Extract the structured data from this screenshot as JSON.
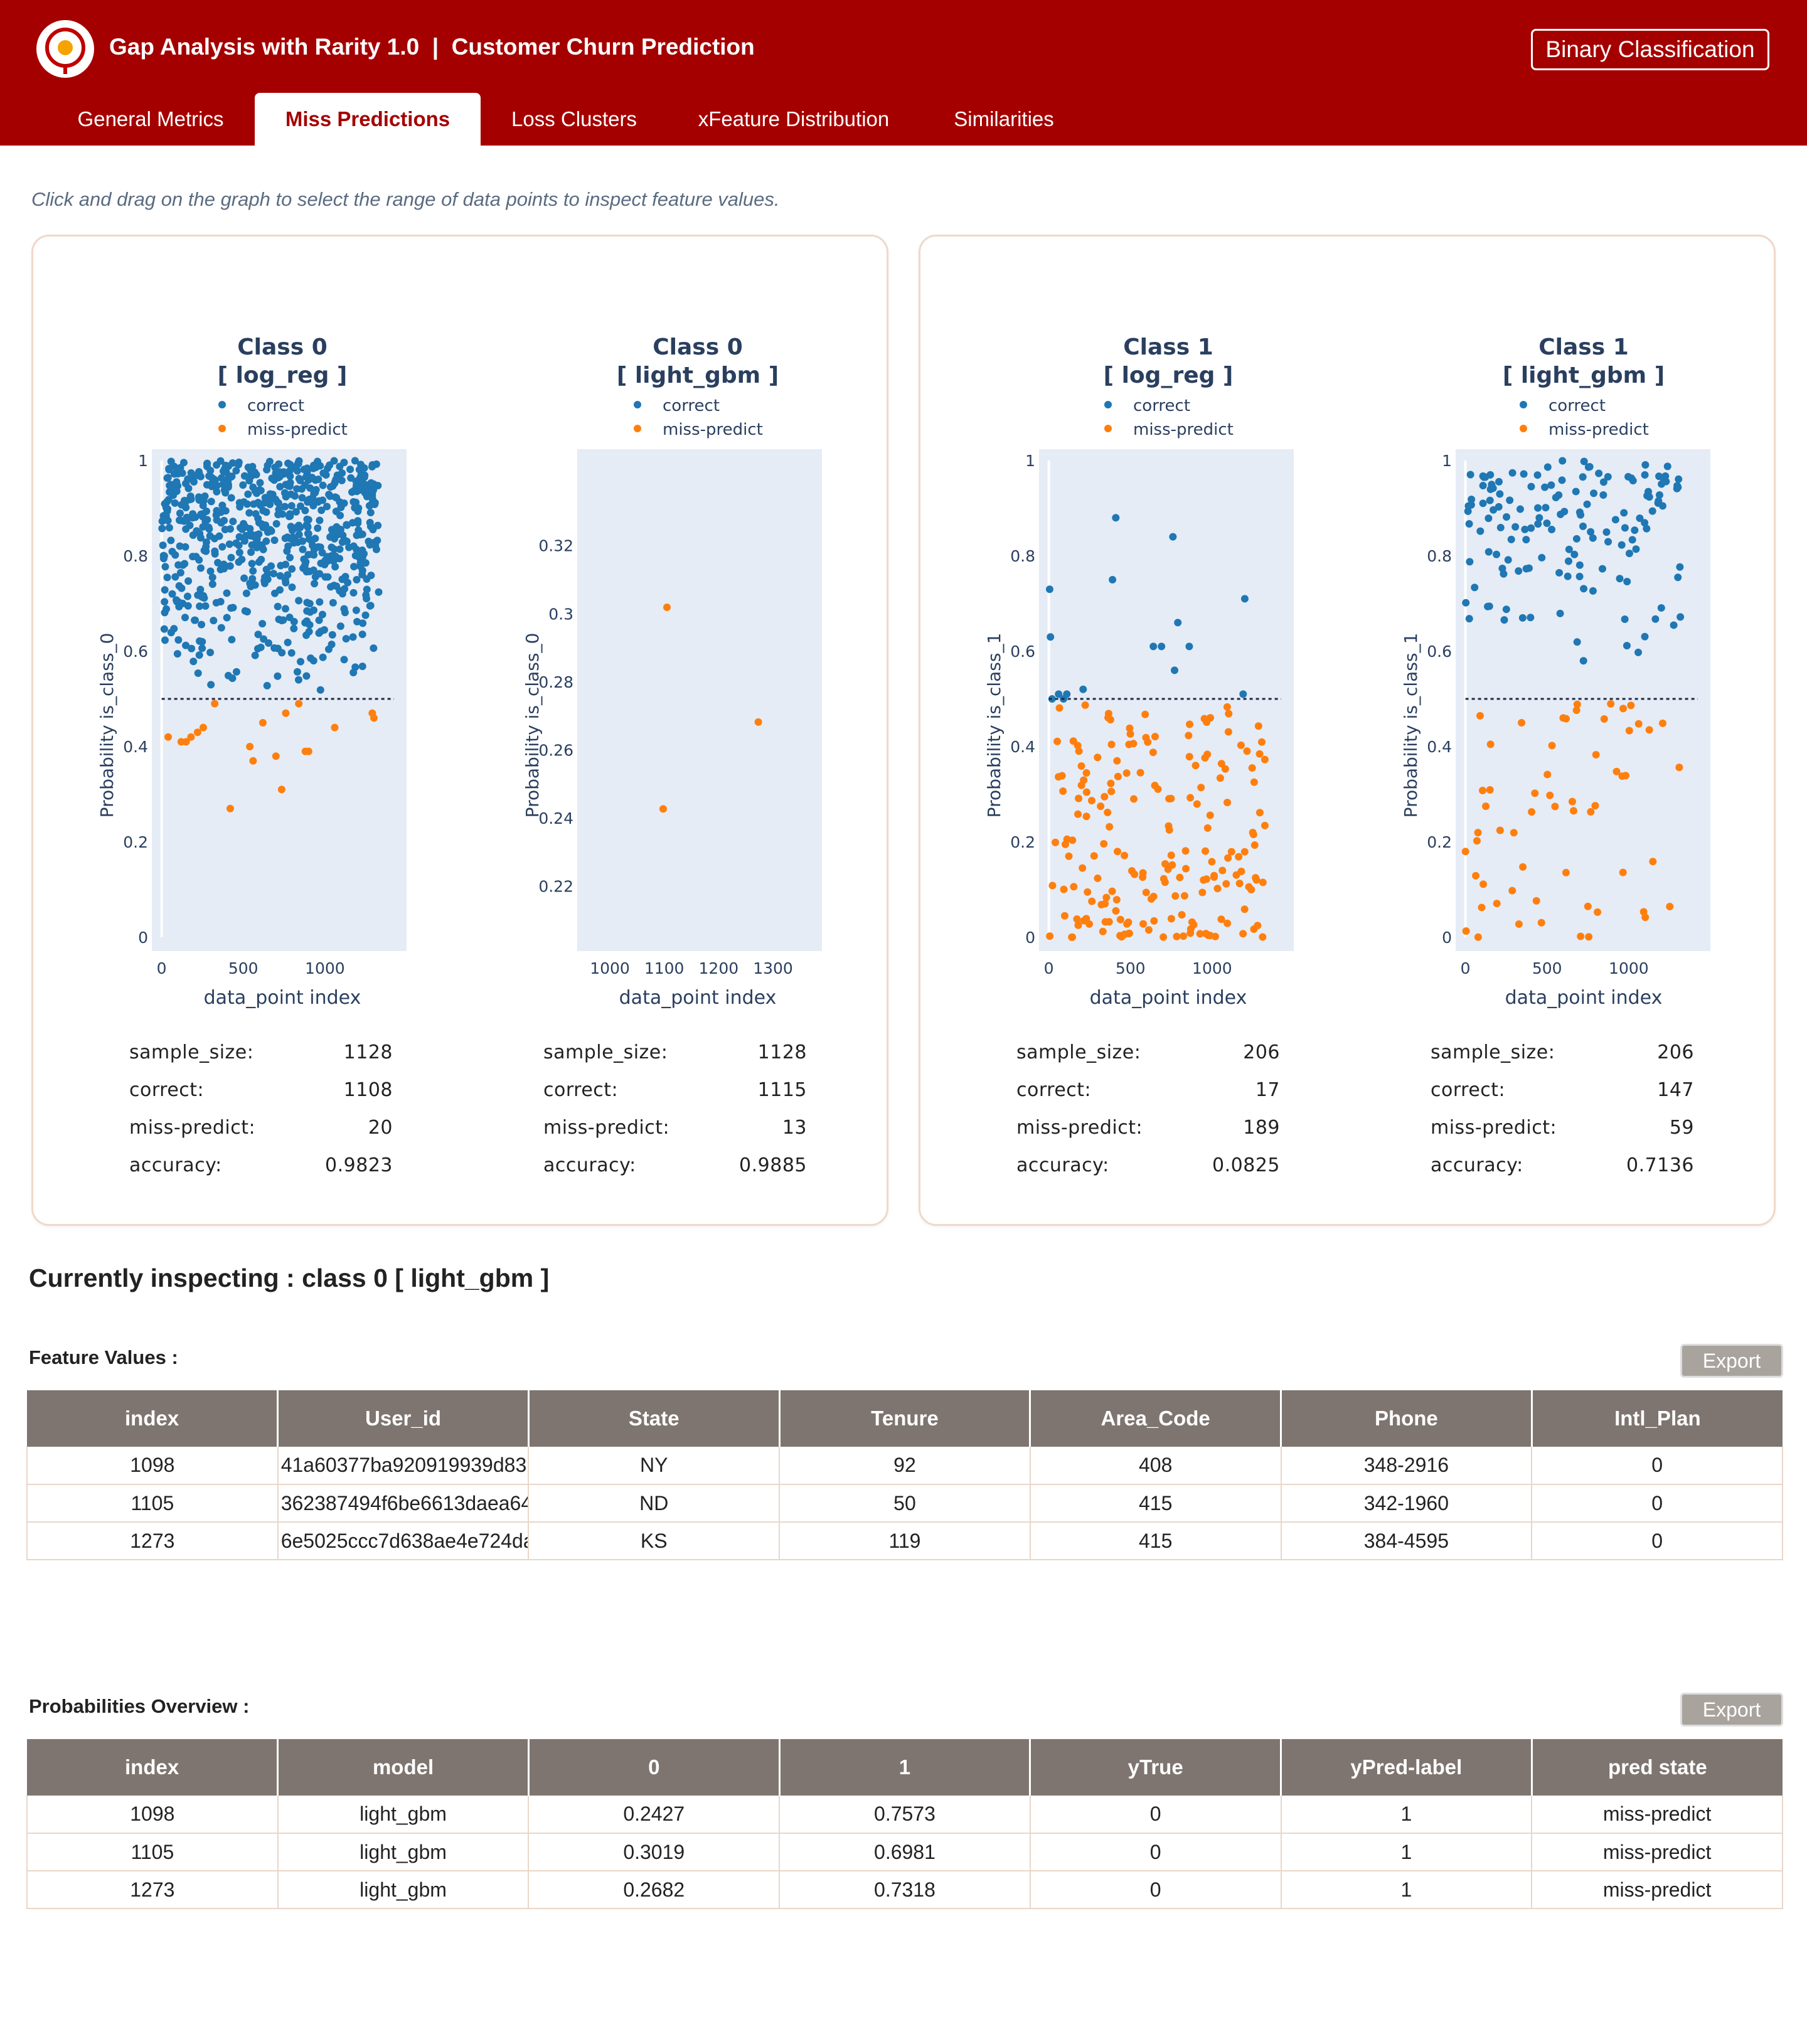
{
  "header": {
    "title": "Gap Analysis with Rarity 1.0  |  Customer Churn Prediction",
    "badge": "Binary Classification",
    "logo_icon": "rarity-logo-icon"
  },
  "tabs": [
    {
      "label": "General Metrics",
      "active": false
    },
    {
      "label": "Miss Predictions",
      "active": true
    },
    {
      "label": "Loss Clusters",
      "active": false
    },
    {
      "label": "xFeature Distribution",
      "active": false
    },
    {
      "label": "Similarities",
      "active": false
    }
  ],
  "hint": "Click and drag on the graph to select the range of data points to inspect feature values.",
  "colors": {
    "header_bg": "#a50000",
    "correct": "#1f77b4",
    "miss_predict": "#ff7f0e",
    "plot_bg": "#e5ecf6",
    "table_header_bg": "#7e7570"
  },
  "plots": [
    {
      "title_line1": "Class 0",
      "title_line2": "[ log_reg ]",
      "legend": [
        "correct",
        "miss-predict"
      ],
      "ylabel": "Probability is_class_0",
      "xlabel": "data_point index",
      "xticks": [
        "0",
        "500",
        "1000"
      ],
      "yticks": [
        "0",
        "0.2",
        "0.4",
        "0.6",
        "0.8",
        "1"
      ],
      "stats": {
        "sample_size": "1128",
        "correct": "1108",
        "miss_predict": "20",
        "accuracy": "0.9823"
      }
    },
    {
      "title_line1": "Class 0",
      "title_line2": "[ light_gbm ]",
      "legend": [
        "correct",
        "miss-predict"
      ],
      "ylabel": "Probability is_class_0",
      "xlabel": "data_point index",
      "xticks": [
        "1000",
        "1100",
        "1200",
        "1300"
      ],
      "yticks": [
        "0.22",
        "0.24",
        "0.26",
        "0.28",
        "0.3",
        "0.32"
      ],
      "stats": {
        "sample_size": "1128",
        "correct": "1115",
        "miss_predict": "13",
        "accuracy": "0.9885"
      }
    },
    {
      "title_line1": "Class 1",
      "title_line2": "[ log_reg ]",
      "legend": [
        "correct",
        "miss-predict"
      ],
      "ylabel": "Probability is_class_1",
      "xlabel": "data_point index",
      "xticks": [
        "0",
        "500",
        "1000"
      ],
      "yticks": [
        "0",
        "0.2",
        "0.4",
        "0.6",
        "0.8",
        "1"
      ],
      "stats": {
        "sample_size": "206",
        "correct": "17",
        "miss_predict": "189",
        "accuracy": "0.0825"
      }
    },
    {
      "title_line1": "Class 1",
      "title_line2": "[ light_gbm ]",
      "legend": [
        "correct",
        "miss-predict"
      ],
      "ylabel": "Probability is_class_1",
      "xlabel": "data_point index",
      "xticks": [
        "0",
        "500",
        "1000"
      ],
      "yticks": [
        "0",
        "0.2",
        "0.4",
        "0.6",
        "0.8",
        "1"
      ],
      "stats": {
        "sample_size": "206",
        "correct": "147",
        "miss_predict": "59",
        "accuracy": "0.7136"
      }
    }
  ],
  "stat_labels": {
    "sample_size": "sample_size:",
    "correct": "correct:",
    "miss_predict": "miss-predict:",
    "accuracy": "accuracy:"
  },
  "chart_data": [
    {
      "type": "scatter",
      "title": "Class 0 [ log_reg ]",
      "xlabel": "data_point index",
      "ylabel": "Probability is_class_0",
      "xlim": [
        -60,
        1500
      ],
      "ylim": [
        0,
        1
      ],
      "threshold": 0.5,
      "series": [
        {
          "name": "correct",
          "color": "#1f77b4",
          "count": 1108,
          "y_range": [
            0.5,
            1.0
          ]
        },
        {
          "name": "miss-predict",
          "color": "#ff7f0e",
          "points": [
            [
              40,
              0.42
            ],
            [
              120,
              0.41
            ],
            [
              150,
              0.41
            ],
            [
              180,
              0.42
            ],
            [
              220,
              0.43
            ],
            [
              255,
              0.44
            ],
            [
              325,
              0.49
            ],
            [
              420,
              0.27
            ],
            [
              540,
              0.4
            ],
            [
              560,
              0.37
            ],
            [
              620,
              0.45
            ],
            [
              700,
              0.38
            ],
            [
              735,
              0.31
            ],
            [
              760,
              0.47
            ],
            [
              840,
              0.49
            ],
            [
              880,
              0.39
            ],
            [
              900,
              0.39
            ],
            [
              1060,
              0.44
            ],
            [
              1300,
              0.46
            ],
            [
              1290,
              0.47
            ]
          ]
        }
      ]
    },
    {
      "type": "scatter",
      "title": "Class 0 [ light_gbm ]",
      "xlabel": "data_point index",
      "ylabel": "Probability is_class_0",
      "xlim": [
        940,
        1390
      ],
      "ylim": [
        0.205,
        0.345
      ],
      "series": [
        {
          "name": "miss-predict",
          "color": "#ff7f0e",
          "points": [
            [
              1098,
              0.2427
            ],
            [
              1105,
              0.3019
            ],
            [
              1273,
              0.2682
            ]
          ]
        }
      ]
    },
    {
      "type": "scatter",
      "title": "Class 1 [ log_reg ]",
      "xlabel": "data_point index",
      "ylabel": "Probability is_class_1",
      "xlim": [
        -60,
        1500
      ],
      "ylim": [
        0,
        1
      ],
      "threshold": 0.5,
      "series": [
        {
          "name": "correct",
          "color": "#1f77b4",
          "points": [
            [
              5,
              0.73
            ],
            [
              10,
              0.63
            ],
            [
              20,
              0.5
            ],
            [
              60,
              0.51
            ],
            [
              90,
              0.5
            ],
            [
              110,
              0.51
            ],
            [
              210,
              0.52
            ],
            [
              390,
              0.75
            ],
            [
              410,
              0.88
            ],
            [
              640,
              0.61
            ],
            [
              690,
              0.61
            ],
            [
              760,
              0.84
            ],
            [
              770,
              0.56
            ],
            [
              790,
              0.66
            ],
            [
              860,
              0.61
            ],
            [
              1200,
              0.71
            ],
            [
              1190,
              0.51
            ]
          ]
        },
        {
          "name": "miss-predict",
          "color": "#ff7f0e",
          "count": 189,
          "y_range": [
            0.0,
            0.49
          ]
        }
      ]
    },
    {
      "type": "scatter",
      "title": "Class 1 [ light_gbm ]",
      "xlabel": "data_point index",
      "ylabel": "Probability is_class_1",
      "xlim": [
        -60,
        1500
      ],
      "ylim": [
        0,
        1
      ],
      "threshold": 0.5,
      "series": [
        {
          "name": "correct",
          "color": "#1f77b4",
          "count": 147,
          "y_range": [
            0.5,
            1.0
          ]
        },
        {
          "name": "miss-predict",
          "color": "#ff7f0e",
          "count": 59,
          "y_range": [
            0.0,
            0.49
          ]
        }
      ]
    }
  ],
  "inspect_title": "Currently inspecting : class 0 [ light_gbm ]",
  "feature_table": {
    "label": "Feature Values :",
    "export_label": "Export",
    "columns": [
      "index",
      "User_id",
      "State",
      "Tenure",
      "Area_Code",
      "Phone",
      "Intl_Plan"
    ],
    "rows": [
      [
        "1098",
        "41a60377ba920919939d83",
        "NY",
        "92",
        "408",
        "348-2916",
        "0"
      ],
      [
        "1105",
        "362387494f6be6613daea64",
        "ND",
        "50",
        "415",
        "342-1960",
        "0"
      ],
      [
        "1273",
        "6e5025ccc7d638ae4e724da",
        "KS",
        "119",
        "415",
        "384-4595",
        "0"
      ]
    ]
  },
  "prob_table": {
    "label": "Probabilities Overview :",
    "export_label": "Export",
    "columns": [
      "index",
      "model",
      "0",
      "1",
      "yTrue",
      "yPred-label",
      "pred state"
    ],
    "rows": [
      [
        "1098",
        "light_gbm",
        "0.2427",
        "0.7573",
        "0",
        "1",
        "miss-predict"
      ],
      [
        "1105",
        "light_gbm",
        "0.3019",
        "0.6981",
        "0",
        "1",
        "miss-predict"
      ],
      [
        "1273",
        "light_gbm",
        "0.2682",
        "0.7318",
        "0",
        "1",
        "miss-predict"
      ]
    ]
  }
}
